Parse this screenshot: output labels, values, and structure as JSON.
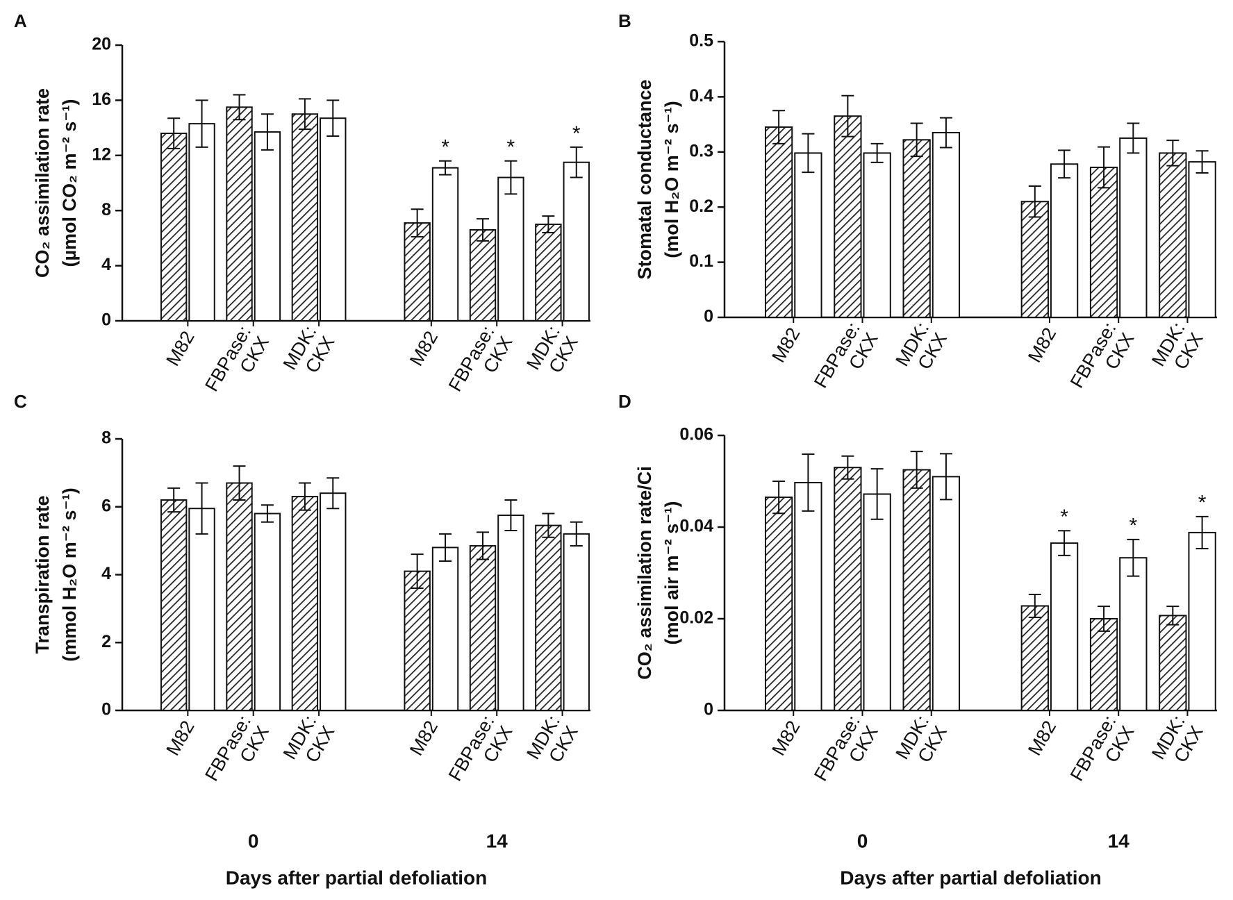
{
  "chart_data": [
    {
      "type": "bar",
      "panel": "A",
      "ylabel": [
        "CO₂ assimilation rate",
        "(µmol CO₂ m⁻² s⁻¹)"
      ],
      "categories": [
        [
          "M82"
        ],
        [
          "FBPase:",
          "CKX"
        ],
        [
          "MDK:",
          "CKX"
        ],
        [
          "M82"
        ],
        [
          "FBPase:",
          "CKX"
        ],
        [
          "MDK:",
          "CKX"
        ]
      ],
      "series": [
        {
          "color": "#222222",
          "hatch": true,
          "values": [
            13.6,
            15.5,
            15.0,
            7.1,
            6.6,
            7.0
          ],
          "errors": [
            1.1,
            0.9,
            1.1,
            1.0,
            0.8,
            0.6
          ]
        },
        {
          "color": "#ffffff",
          "values": [
            14.3,
            13.7,
            14.7,
            11.1,
            10.4,
            11.5
          ],
          "errors": [
            1.7,
            1.3,
            1.3,
            0.5,
            1.2,
            1.1
          ],
          "marks": [
            null,
            null,
            null,
            "*",
            "*",
            "*"
          ]
        }
      ],
      "ylim": [
        0,
        20
      ],
      "yticks": [
        0,
        4,
        8,
        12,
        16,
        20
      ]
    },
    {
      "type": "bar",
      "panel": "B",
      "ylabel": [
        "Stomatal conductance",
        "(mol H₂O m⁻² s⁻¹)"
      ],
      "categories": [
        [
          "M82"
        ],
        [
          "FBPase:",
          "CKX"
        ],
        [
          "MDK:",
          "CKX"
        ],
        [
          "M82"
        ],
        [
          "FBPase:",
          "CKX"
        ],
        [
          "MDK:",
          "CKX"
        ]
      ],
      "series": [
        {
          "color": "#222222",
          "hatch": true,
          "values": [
            0.345,
            0.365,
            0.322,
            0.21,
            0.272,
            0.298
          ],
          "errors": [
            0.03,
            0.037,
            0.03,
            0.028,
            0.037,
            0.023
          ]
        },
        {
          "color": "#ffffff",
          "values": [
            0.298,
            0.298,
            0.335,
            0.278,
            0.325,
            0.282
          ],
          "errors": [
            0.035,
            0.017,
            0.027,
            0.025,
            0.027,
            0.02
          ]
        }
      ],
      "ylim": [
        0,
        0.5
      ],
      "yticks": [
        0,
        0.1,
        0.2,
        0.3,
        0.4,
        0.5
      ]
    },
    {
      "type": "bar",
      "panel": "C",
      "ylabel": [
        "Transpiration rate",
        "(mmol H₂O m⁻² s⁻¹)"
      ],
      "categories": [
        [
          "M82"
        ],
        [
          "FBPase:",
          "CKX"
        ],
        [
          "MDK:",
          "CKX"
        ],
        [
          "M82"
        ],
        [
          "FBPase:",
          "CKX"
        ],
        [
          "MDK:",
          "CKX"
        ]
      ],
      "series": [
        {
          "color": "#222222",
          "hatch": true,
          "values": [
            6.2,
            6.7,
            6.3,
            4.1,
            4.85,
            5.45
          ],
          "errors": [
            0.35,
            0.5,
            0.4,
            0.5,
            0.4,
            0.35
          ]
        },
        {
          "color": "#ffffff",
          "values": [
            5.95,
            5.8,
            6.4,
            4.8,
            5.75,
            5.2
          ],
          "errors": [
            0.75,
            0.25,
            0.45,
            0.4,
            0.45,
            0.35
          ]
        }
      ],
      "ylim": [
        0,
        8
      ],
      "yticks": [
        0,
        2,
        4,
        6,
        8
      ],
      "groups": [
        "0",
        "14"
      ],
      "xlabel": "Days after partial defoliation"
    },
    {
      "type": "bar",
      "panel": "D",
      "ylabel": [
        "CO₂ assimilation rate/Ci",
        "(mol air m⁻² s⁻¹)"
      ],
      "categories": [
        [
          "M82"
        ],
        [
          "FBPase:",
          "CKX"
        ],
        [
          "MDK:",
          "CKX"
        ],
        [
          "M82"
        ],
        [
          "FBPase:",
          "CKX"
        ],
        [
          "MDK:",
          "CKX"
        ]
      ],
      "series": [
        {
          "color": "#222222",
          "hatch": true,
          "values": [
            0.0465,
            0.053,
            0.0525,
            0.0228,
            0.02,
            0.0207
          ],
          "errors": [
            0.0035,
            0.0025,
            0.004,
            0.0025,
            0.0027,
            0.002
          ]
        },
        {
          "color": "#ffffff",
          "values": [
            0.0497,
            0.0472,
            0.051,
            0.0365,
            0.0333,
            0.0388
          ],
          "errors": [
            0.0062,
            0.0055,
            0.005,
            0.0027,
            0.004,
            0.0035
          ],
          "marks": [
            null,
            null,
            null,
            "*",
            "*",
            "*"
          ]
        }
      ],
      "ylim": [
        0,
        0.06
      ],
      "yticks": [
        0,
        0.02,
        0.04,
        0.06
      ],
      "groups": [
        "0",
        "14"
      ],
      "xlabel": "Days after partial defoliation"
    }
  ]
}
